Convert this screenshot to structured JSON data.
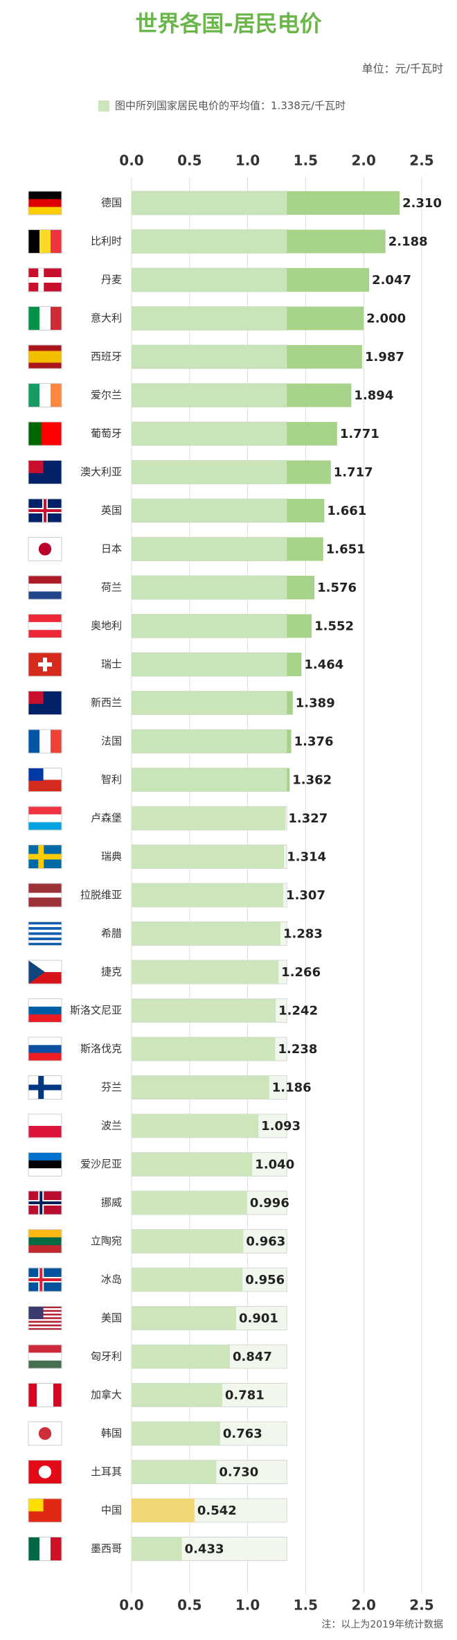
{
  "chart_data": {
    "type": "bar",
    "orientation": "horizontal",
    "title": "世界各国-居民电价",
    "unit_label": "单位：元/千瓦时",
    "legend_label": "图中所列国家居民电价的平均值：1.338元/千瓦时",
    "average": 1.338,
    "note": "注：以上为2019年统计数据",
    "categories": [
      "德国",
      "比利时",
      "丹麦",
      "意大利",
      "西班牙",
      "爱尔兰",
      "葡萄牙",
      "澳大利亚",
      "英国",
      "日本",
      "荷兰",
      "奥地利",
      "瑞士",
      "新西兰",
      "法国",
      "智利",
      "卢森堡",
      "瑞典",
      "拉脱维亚",
      "希腊",
      "捷克",
      "斯洛文尼亚",
      "斯洛伐克",
      "芬兰",
      "波兰",
      "爱沙尼亚",
      "挪威",
      "立陶宛",
      "冰岛",
      "美国",
      "匈牙利",
      "加拿大",
      "韩国",
      "土耳其",
      "中国",
      "墨西哥"
    ],
    "values": [
      2.31,
      2.188,
      2.047,
      2.0,
      1.987,
      1.894,
      1.771,
      1.717,
      1.661,
      1.651,
      1.576,
      1.552,
      1.464,
      1.389,
      1.376,
      1.362,
      1.327,
      1.314,
      1.307,
      1.283,
      1.266,
      1.242,
      1.238,
      1.186,
      1.093,
      1.04,
      0.996,
      0.963,
      0.956,
      0.901,
      0.847,
      0.781,
      0.763,
      0.73,
      0.542,
      0.433
    ],
    "value_labels": [
      "2.310",
      "2.188",
      "2.047",
      "2.000",
      "1.987",
      "1.894",
      "1.771",
      "1.717",
      "1.661",
      "1.651",
      "1.576",
      "1.552",
      "1.464",
      "1.389",
      "1.376",
      "1.362",
      "1.327",
      "1.314",
      "1.307",
      "1.283",
      "1.266",
      "1.242",
      "1.238",
      "1.186",
      "1.093",
      "1.040",
      "0.996",
      "0.963",
      "0.956",
      "0.901",
      "0.847",
      "0.781",
      "0.763",
      "0.730",
      "0.542",
      "0.433"
    ],
    "colors": [
      "#a6d28a",
      "#a6d28a",
      "#a6d28a",
      "#a6d28a",
      "#a6d28a",
      "#a6d28a",
      "#a6d28a",
      "#a6d28a",
      "#a6d28a",
      "#a6d28a",
      "#a6d28a",
      "#a6d28a",
      "#a6d28a",
      "#a6d28a",
      "#a6d28a",
      "#a6d28a",
      "#cce5bb",
      "#cce5bb",
      "#cce5bb",
      "#cce5bb",
      "#cce5bb",
      "#cce5bb",
      "#cce5bb",
      "#cce5bb",
      "#cce5bb",
      "#cce5bb",
      "#cce5bb",
      "#cce5bb",
      "#cce5bb",
      "#cce5bb",
      "#cce5bb",
      "#cce5bb",
      "#cce5bb",
      "#cce5bb",
      "#f1d775",
      "#cce5bb"
    ],
    "xlim": [
      0,
      2.5
    ],
    "xticks": [
      {
        "value": 0,
        "label": "0.0"
      },
      0.5,
      {
        "value": 1,
        "label": "1.0"
      },
      1.5,
      {
        "value": 2,
        "label": "2.0"
      },
      2.5
    ],
    "grid": true
  }
}
